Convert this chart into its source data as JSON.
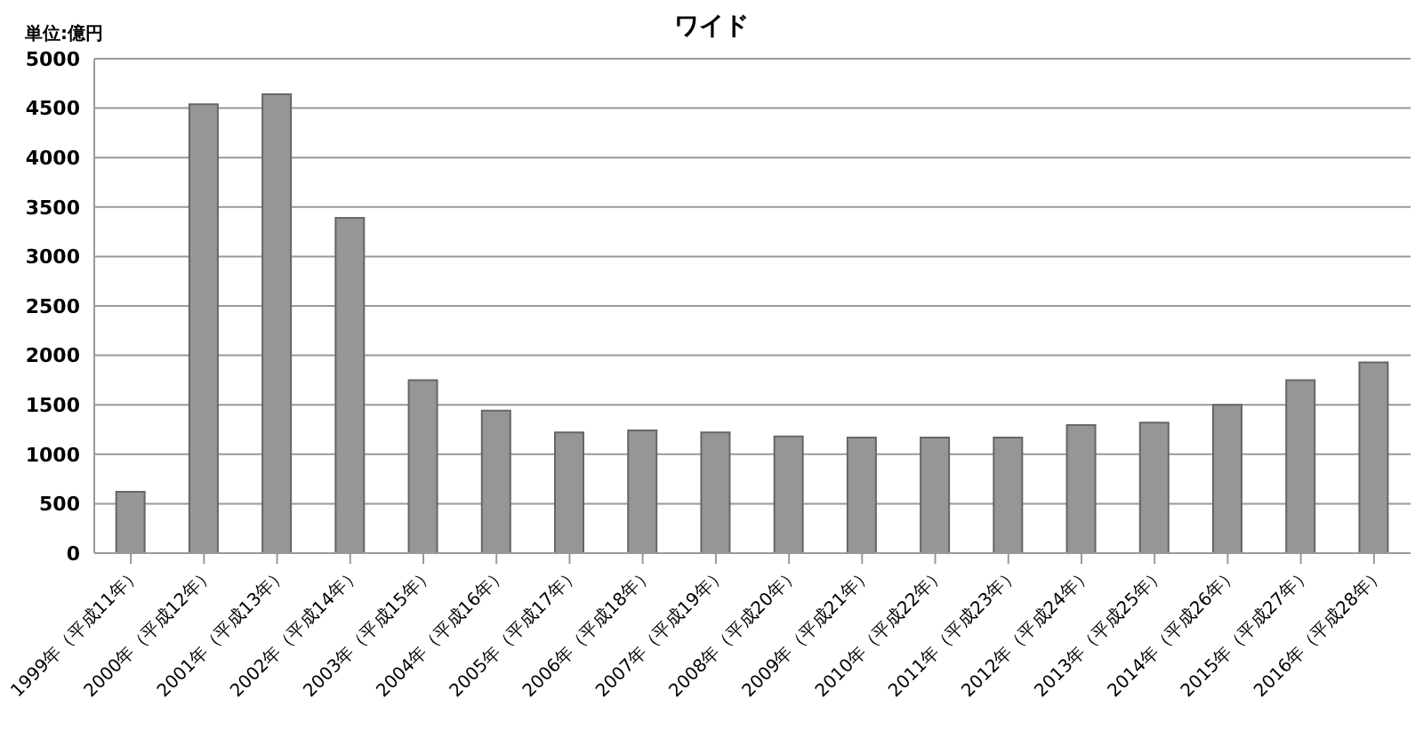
{
  "chart_data": {
    "type": "bar",
    "title": "ワイド",
    "ylabel": "単位:億円",
    "categories": [
      "1999年（平成11年）",
      "2000年（平成12年）",
      "2001年（平成13年）",
      "2002年（平成14年）",
      "2003年（平成15年）",
      "2004年（平成16年）",
      "2005年（平成17年）",
      "2006年（平成18年）",
      "2007年（平成19年）",
      "2008年（平成20年）",
      "2009年（平成21年）",
      "2010年（平成22年）",
      "2011年（平成23年）",
      "2012年（平成24年）",
      "2013年（平成25年）",
      "2014年（平成26年）",
      "2015年（平成27年）",
      "2016年（平成28年）"
    ],
    "values": [
      620,
      4540,
      4640,
      3390,
      1750,
      1440,
      1220,
      1240,
      1220,
      1180,
      1170,
      1170,
      1170,
      1295,
      1320,
      1500,
      1750,
      1930
    ],
    "color": "#969696",
    "ylim": [
      0,
      5000
    ],
    "yticks": [
      0,
      500,
      1000,
      1500,
      2000,
      2500,
      3000,
      3500,
      4000,
      4500,
      5000
    ],
    "grid": "y",
    "legend": false
  }
}
